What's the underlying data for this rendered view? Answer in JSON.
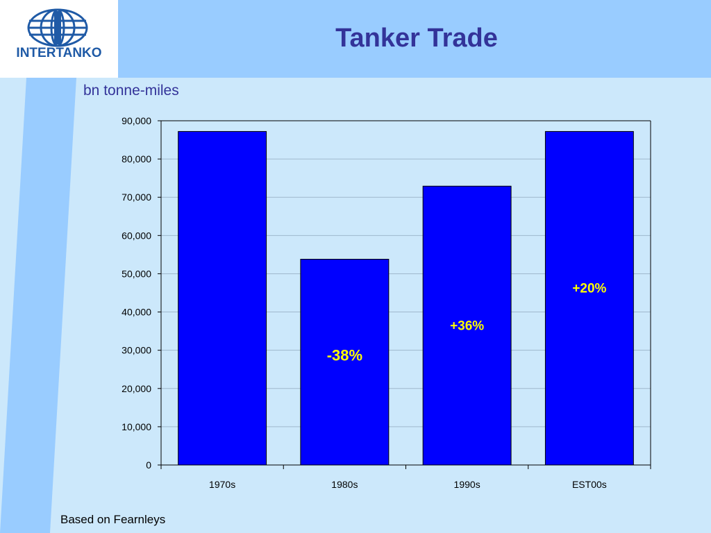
{
  "logo": {
    "text": "INTERTANKO",
    "icon": "globe-icon"
  },
  "slide": {
    "title": "Tanker Trade",
    "footnote": "Based on Fearnleys"
  },
  "colors": {
    "header_band": "#99ccff",
    "background": "#cce8fb",
    "bar_fill": "#0000ff",
    "title": "#333399",
    "annotation": "#ffff00"
  },
  "chart_data": {
    "type": "bar",
    "title": "",
    "ylabel": "bn tonne-miles",
    "xlabel": "",
    "categories": [
      "1970s",
      "1980s",
      "1990s",
      "EST00s"
    ],
    "values": [
      87200,
      53800,
      72900,
      87200
    ],
    "ylim": [
      0,
      90000
    ],
    "ytick_labels": [
      "0",
      "10,000",
      "20,000",
      "30,000",
      "40,000",
      "50,000",
      "60,000",
      "70,000",
      "80,000",
      "90,000"
    ],
    "grid": true,
    "legend": "none",
    "annotations": [
      {
        "category": "1980s",
        "text": "-38%",
        "y": 28600
      },
      {
        "category": "1990s",
        "text": "+36%",
        "y": 36600
      },
      {
        "category": "EST00s",
        "text": "+20%",
        "y": 46400
      }
    ]
  }
}
